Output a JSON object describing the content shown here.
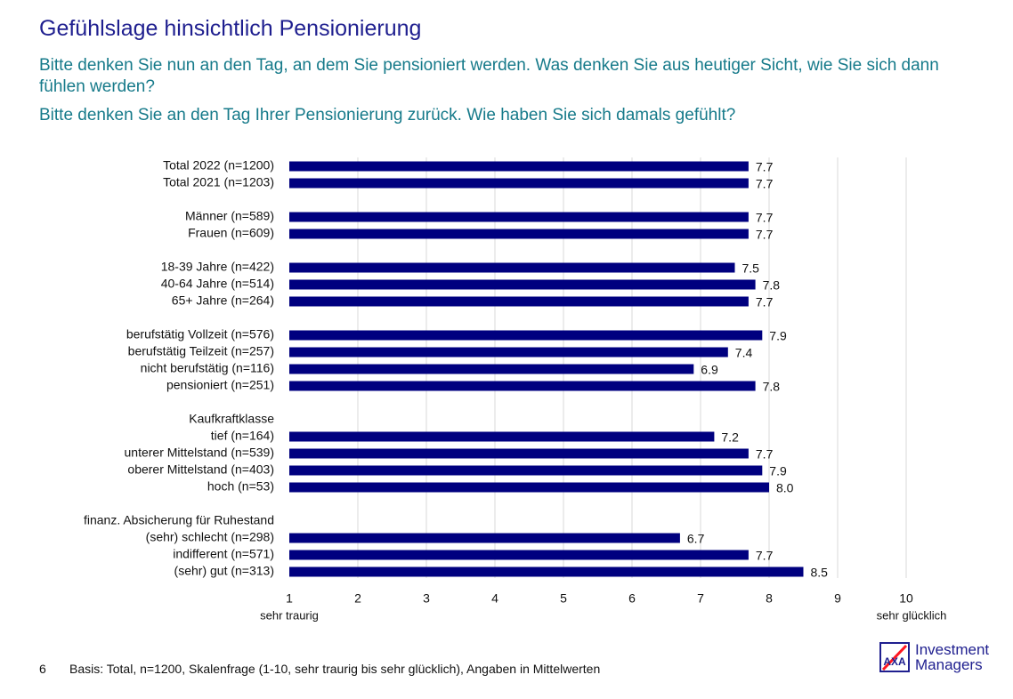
{
  "header": {
    "title": "Gefühlslage hinsichtlich Pensionierung",
    "question_1": "Bitte denken Sie nun an den Tag, an dem Sie pensioniert werden. Was denken Sie aus heutiger Sicht, wie Sie sich dann fühlen werden?",
    "question_2": "Bitte denken Sie an den Tag Ihrer Pensionierung zurück. Wie haben Sie sich damals gefühlt?"
  },
  "footer": {
    "page_number": "6",
    "note": "Basis: Total, n=1200, Skalenfrage (1-10, sehr traurig bis sehr glücklich), Angaben in Mittelwerten"
  },
  "logo": {
    "brand_mark": "AXA",
    "line_1": "Investment",
    "line_2": "Managers"
  },
  "colors": {
    "bar": "#00007f",
    "title": "#1f1f8f",
    "question": "#167a8a",
    "grid": "#d9d9d9",
    "logo_red": "#ff1721"
  },
  "chart_data": {
    "type": "bar",
    "orientation": "horizontal",
    "xlim": [
      1,
      10
    ],
    "xticks": [
      1,
      2,
      3,
      4,
      5,
      6,
      7,
      8,
      9,
      10
    ],
    "xlabel_min": "sehr traurig",
    "xlabel_max": "sehr glücklich",
    "grid": true,
    "groups": [
      {
        "heading": null,
        "items": [
          {
            "label": "Total 2022 (n=1200)",
            "value": 7.7
          },
          {
            "label": "Total 2021 (n=1203)",
            "value": 7.7
          }
        ]
      },
      {
        "heading": null,
        "items": [
          {
            "label": "Männer (n=589)",
            "value": 7.7
          },
          {
            "label": "Frauen (n=609)",
            "value": 7.7
          }
        ]
      },
      {
        "heading": null,
        "items": [
          {
            "label": "18-39 Jahre (n=422)",
            "value": 7.5
          },
          {
            "label": "40-64 Jahre (n=514)",
            "value": 7.8
          },
          {
            "label": "65+ Jahre (n=264)",
            "value": 7.7
          }
        ]
      },
      {
        "heading": null,
        "items": [
          {
            "label": "berufstätig Vollzeit (n=576)",
            "value": 7.9
          },
          {
            "label": "berufstätig Teilzeit (n=257)",
            "value": 7.4
          },
          {
            "label": "nicht berufstätig (n=116)",
            "value": 6.9
          },
          {
            "label": "pensioniert (n=251)",
            "value": 7.8
          }
        ]
      },
      {
        "heading": "Kaufkraftklasse",
        "items": [
          {
            "label": "tief (n=164)",
            "value": 7.2
          },
          {
            "label": "unterer Mittelstand (n=539)",
            "value": 7.7
          },
          {
            "label": "oberer Mittelstand (n=403)",
            "value": 7.9
          },
          {
            "label": "hoch (n=53)",
            "value": 8.0
          }
        ]
      },
      {
        "heading": "finanz. Absicherung für Ruhestand",
        "items": [
          {
            "label": "(sehr) schlecht  (n=298)",
            "value": 6.7
          },
          {
            "label": "indifferent (n=571)",
            "value": 7.7
          },
          {
            "label": "(sehr) gut (n=313)",
            "value": 8.5
          }
        ]
      }
    ]
  }
}
